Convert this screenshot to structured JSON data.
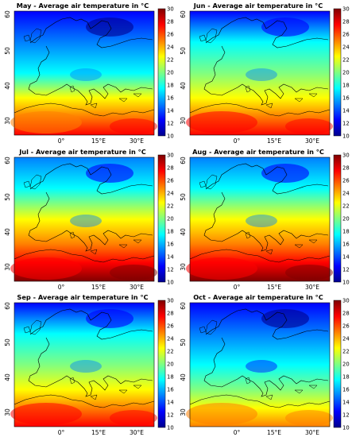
{
  "panels": [
    {
      "title": "May - Average air temperature in °C",
      "month": "May"
    },
    {
      "title": "Jun - Average air temperature in °C",
      "month": "Jun"
    },
    {
      "title": "Jul - Average air temperature in °C",
      "month": "Jul"
    },
    {
      "title": "Aug - Average air temperature in °C",
      "month": "Aug"
    },
    {
      "title": "Sep - Average air temperature in °C",
      "month": "Sep"
    },
    {
      "title": "Oct - Average air temperature in °C",
      "month": "Oct"
    }
  ],
  "lat_ticks": [
    "30",
    "40",
    "50",
    "60"
  ],
  "lon_ticks": [
    "0°",
    "15°E",
    "30°E"
  ],
  "colorbar_ticks": [
    "10",
    "12",
    "14",
    "16",
    "18",
    "20",
    "22",
    "24",
    "26",
    "28",
    "30"
  ],
  "colorbar_range": [
    10,
    30
  ],
  "colormap": [
    "#00008f",
    "#0000ff",
    "#0080ff",
    "#00ffff",
    "#80ff80",
    "#ffff00",
    "#ff8000",
    "#ff0000",
    "#800000"
  ]
}
